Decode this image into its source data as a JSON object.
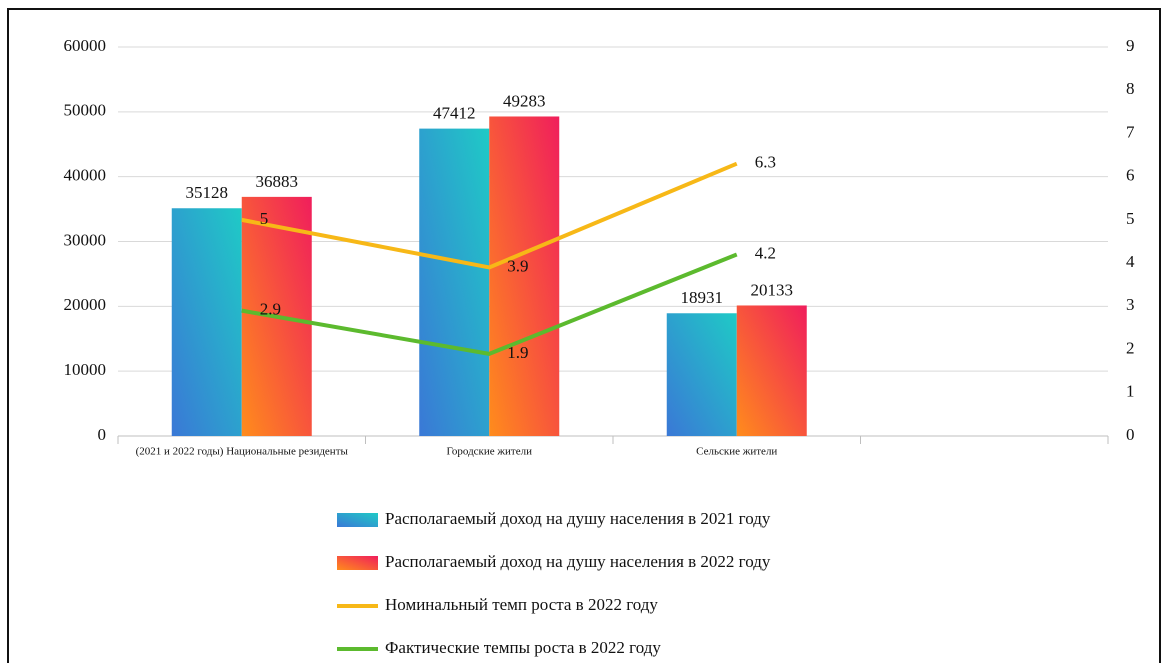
{
  "chart_data": {
    "type": "bar",
    "categories": [
      "(2021 и 2022 годы) Национальные резиденты",
      "Городские жители",
      "Сельские жители",
      null
    ],
    "series": [
      {
        "name": "Располагаемый доход на душу населения в 2021 году",
        "type": "bar",
        "color": "#1fc6c4",
        "gradient": [
          "#1fcac6",
          "#3a78d6"
        ],
        "values": [
          35128,
          47412,
          18931,
          null
        ]
      },
      {
        "name": "Располагаемый доход на душу населения в 2022 году",
        "type": "bar",
        "color": "#f42458",
        "gradient": [
          "#f01e5c",
          "#ff8c1c"
        ],
        "values": [
          36883,
          49283,
          20133,
          null
        ]
      },
      {
        "name": "Номинальный темп роста в 2022 году",
        "type": "line",
        "axis": "y2",
        "color": "#f7b817",
        "values": [
          5,
          3.9,
          6.3,
          null
        ]
      },
      {
        "name": "Фактические темпы роста в 2022 году",
        "type": "line",
        "axis": "y2",
        "color": "#5cba2e",
        "values": [
          2.9,
          1.9,
          4.2,
          null
        ]
      }
    ],
    "ylim": [
      0,
      60000
    ],
    "yticks": [
      0,
      10000,
      20000,
      30000,
      40000,
      50000,
      60000
    ],
    "y2lim": [
      0,
      9
    ],
    "y2ticks": [
      0,
      1,
      2,
      3,
      4,
      5,
      6,
      7,
      8,
      9
    ],
    "grid": true,
    "legend": "bottom"
  }
}
